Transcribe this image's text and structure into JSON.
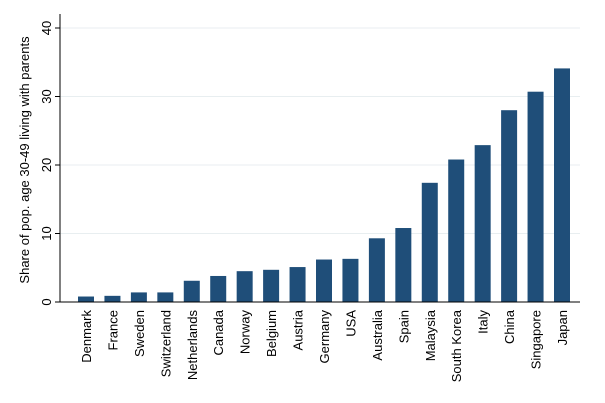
{
  "chart_data": {
    "type": "bar",
    "title": "",
    "xlabel": "",
    "ylabel": "Share of pop. age 30-49 living with parents",
    "ylim": [
      0,
      40
    ],
    "yticks": [
      0,
      10,
      20,
      30,
      40
    ],
    "grid": true,
    "bar_color": "#1f4e79",
    "categories": [
      "Denmark",
      "France",
      "Sweden",
      "Switzerland",
      "Netherlands",
      "Canada",
      "Norway",
      "Belgium",
      "Austria",
      "Germany",
      "USA",
      "Australia",
      "Spain",
      "Malaysia",
      "South Korea",
      "Italy",
      "China",
      "Singapore",
      "Japan"
    ],
    "values": [
      0.8,
      0.9,
      1.4,
      1.4,
      3.1,
      3.8,
      4.5,
      4.7,
      5.1,
      6.2,
      6.3,
      9.3,
      10.8,
      17.4,
      20.8,
      22.9,
      28.0,
      30.7,
      34.1
    ]
  }
}
